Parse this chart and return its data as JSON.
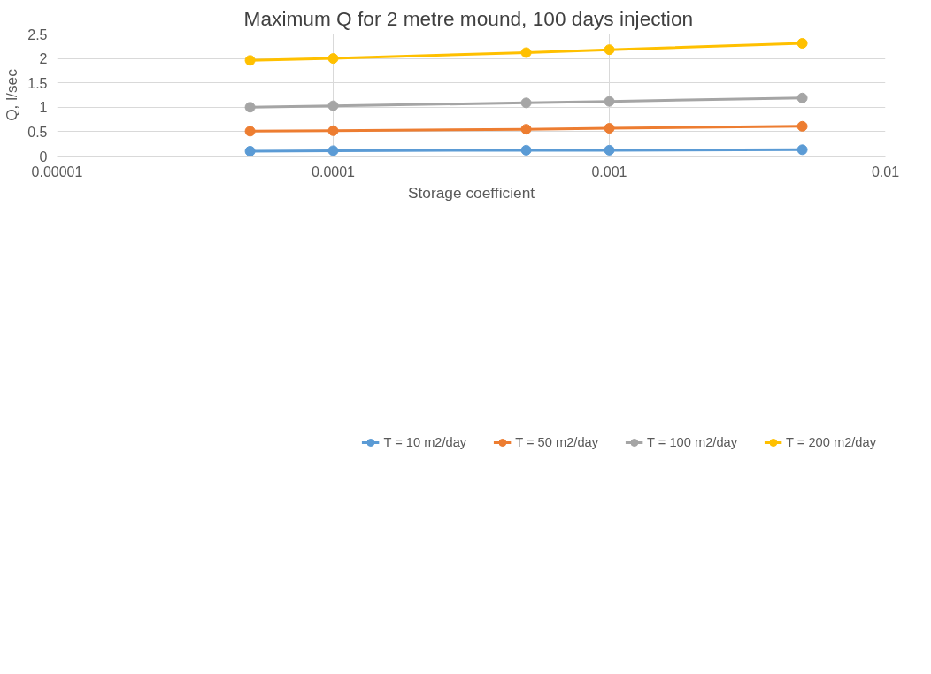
{
  "chart_data": {
    "type": "line",
    "title": "Maximum Q  for 2 metre mound, 100 days injection",
    "xlabel": "Storage coefficient",
    "ylabel": "Q, l/sec",
    "x": [
      5e-05,
      0.0001,
      0.0005,
      0.001,
      0.005
    ],
    "series": [
      {
        "name": "T = 10 m2/day",
        "color": "#5b9bd5",
        "values": [
          0.1,
          0.11,
          0.12,
          0.12,
          0.13
        ]
      },
      {
        "name": "T = 50 m2/day",
        "color": "#ed7d31",
        "values": [
          0.51,
          0.52,
          0.55,
          0.57,
          0.61
        ]
      },
      {
        "name": "T = 100 m2/day",
        "color": "#a5a5a5",
        "values": [
          1.0,
          1.03,
          1.09,
          1.12,
          1.19
        ]
      },
      {
        "name": "T = 200 m2/day",
        "color": "#ffc000",
        "values": [
          1.96,
          2.0,
          2.12,
          2.18,
          2.31
        ]
      }
    ],
    "log": "x",
    "xlim": [
      1e-05,
      0.01
    ],
    "xticks": [
      {
        "value": 1e-05,
        "label": "0.00001"
      },
      {
        "value": 0.0001,
        "label": "0.0001"
      },
      {
        "value": 0.001,
        "label": "0.001"
      },
      {
        "value": 0.01,
        "label": "0.01"
      }
    ],
    "ylim": [
      0,
      2.5
    ],
    "yticks": [
      {
        "value": 0,
        "label": "0"
      },
      {
        "value": 0.5,
        "label": "0.5"
      },
      {
        "value": 1,
        "label": "1"
      },
      {
        "value": 1.5,
        "label": "1.5"
      },
      {
        "value": 2,
        "label": "2"
      },
      {
        "value": 2.5,
        "label": "2.5"
      }
    ],
    "grid": true,
    "legend": "bottom",
    "marker": "circle",
    "line_style": "solid"
  }
}
